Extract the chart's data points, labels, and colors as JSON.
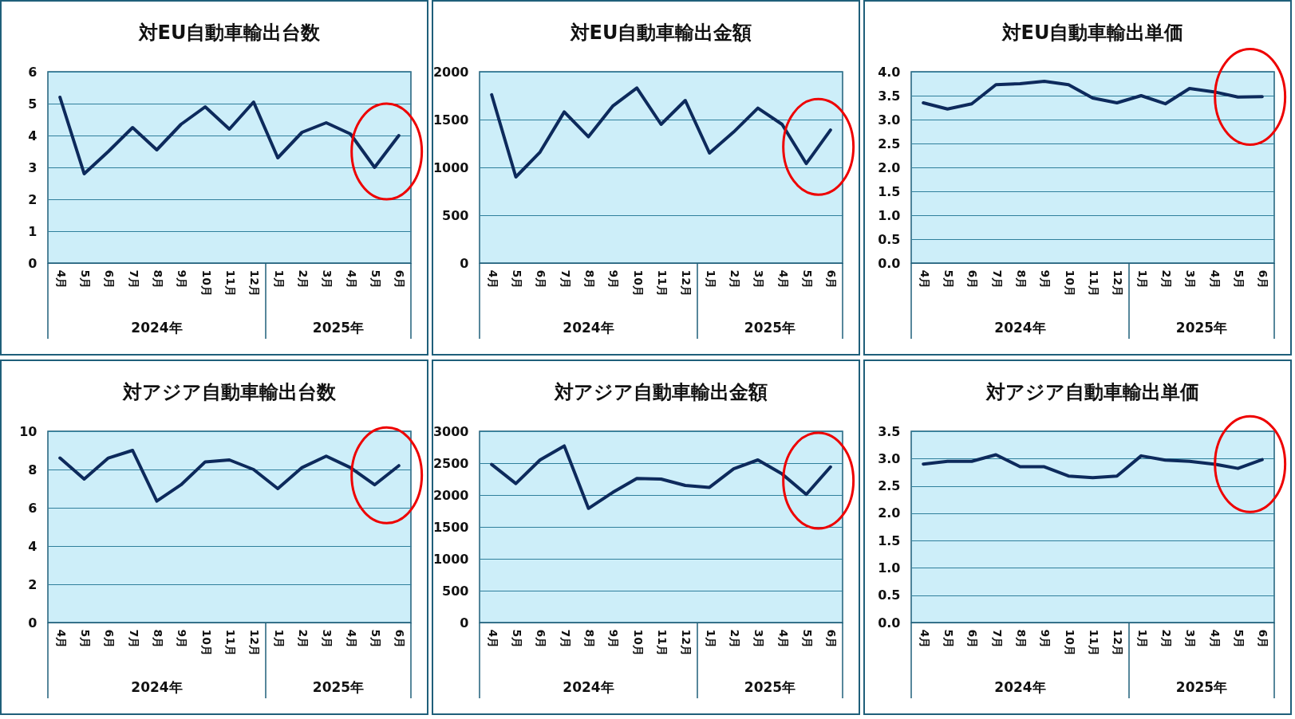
{
  "chart_data": [
    {
      "type": "line",
      "title": "対EU自動車輸出台数",
      "categories": [
        "4月",
        "5月",
        "6月",
        "7月",
        "8月",
        "9月",
        "10月",
        "11月",
        "12月",
        "1月",
        "2月",
        "3月",
        "4月",
        "5月",
        "6月"
      ],
      "annotations": [
        "2024年",
        "2025年"
      ],
      "series": [
        {
          "color": "#0d2a5c",
          "values": [
            5.2,
            2.8,
            3.5,
            4.25,
            3.55,
            4.35,
            4.9,
            4.2,
            5.05,
            3.3,
            4.1,
            4.4,
            4.05,
            3.0,
            4.0
          ]
        }
      ],
      "ylim": [
        0,
        6
      ],
      "yticks": [
        0,
        1,
        2,
        3,
        4,
        5,
        6
      ],
      "grid": "y"
    },
    {
      "type": "line",
      "title": "対EU自動車輸出金額",
      "categories": [
        "4月",
        "5月",
        "6月",
        "7月",
        "8月",
        "9月",
        "10月",
        "11月",
        "12月",
        "1月",
        "2月",
        "3月",
        "4月",
        "5月",
        "6月"
      ],
      "annotations": [
        "2024年",
        "2025年"
      ],
      "series": [
        {
          "color": "#0d2a5c",
          "values": [
            1760,
            900,
            1160,
            1580,
            1320,
            1640,
            1830,
            1450,
            1700,
            1150,
            1370,
            1620,
            1450,
            1040,
            1390
          ]
        }
      ],
      "ylim": [
        0,
        2000
      ],
      "yticks": [
        0,
        500,
        1000,
        1500,
        2000
      ],
      "grid": "y"
    },
    {
      "type": "line",
      "title": "対EU自動車輸出単価",
      "categories": [
        "4月",
        "5月",
        "6月",
        "7月",
        "8月",
        "9月",
        "10月",
        "11月",
        "12月",
        "1月",
        "2月",
        "3月",
        "4月",
        "5月",
        "6月"
      ],
      "annotations": [
        "2024年",
        "2025年"
      ],
      "series": [
        {
          "color": "#0d2a5c",
          "values": [
            3.35,
            3.22,
            3.33,
            3.73,
            3.75,
            3.8,
            3.73,
            3.45,
            3.35,
            3.5,
            3.33,
            3.65,
            3.58,
            3.47,
            3.48
          ]
        }
      ],
      "ylim": [
        0,
        4
      ],
      "yticks": [
        {
          "value": 0,
          "label": "0.0"
        },
        0.5,
        {
          "value": 1,
          "label": "1.0"
        },
        1.5,
        {
          "value": 2,
          "label": "2.0"
        },
        2.5,
        {
          "value": 3,
          "label": "3.0"
        },
        3.5,
        {
          "value": 4,
          "label": "4.0"
        }
      ],
      "grid": "y"
    },
    {
      "type": "line",
      "title": "対アジア自動車輸出台数",
      "categories": [
        "4月",
        "5月",
        "6月",
        "7月",
        "8月",
        "9月",
        "10月",
        "11月",
        "12月",
        "1月",
        "2月",
        "3月",
        "4月",
        "5月",
        "6月"
      ],
      "annotations": [
        "2024年",
        "2025年"
      ],
      "series": [
        {
          "color": "#0d2a5c",
          "values": [
            8.6,
            7.5,
            8.6,
            9.0,
            6.35,
            7.2,
            8.4,
            8.5,
            8.0,
            7.0,
            8.1,
            8.7,
            8.1,
            7.2,
            8.2
          ]
        }
      ],
      "ylim": [
        0,
        10
      ],
      "yticks": [
        0,
        2,
        4,
        6,
        8,
        10
      ],
      "grid": "y"
    },
    {
      "type": "line",
      "title": "対アジア自動車輸出金額",
      "categories": [
        "4月",
        "5月",
        "6月",
        "7月",
        "8月",
        "9月",
        "10月",
        "11月",
        "12月",
        "1月",
        "2月",
        "3月",
        "4月",
        "5月",
        "6月"
      ],
      "annotations": [
        "2024年",
        "2025年"
      ],
      "series": [
        {
          "color": "#0d2a5c",
          "values": [
            2480,
            2180,
            2550,
            2770,
            1790,
            2040,
            2260,
            2250,
            2150,
            2120,
            2410,
            2550,
            2330,
            2010,
            2440
          ]
        }
      ],
      "ylim": [
        0,
        3000
      ],
      "yticks": [
        0,
        500,
        1000,
        1500,
        2000,
        2500,
        3000
      ],
      "grid": "y"
    },
    {
      "type": "line",
      "title": "対アジア自動車輸出単価",
      "categories": [
        "4月",
        "5月",
        "6月",
        "7月",
        "8月",
        "9月",
        "10月",
        "11月",
        "12月",
        "1月",
        "2月",
        "3月",
        "4月",
        "5月",
        "6月"
      ],
      "annotations": [
        "2024年",
        "2025年"
      ],
      "series": [
        {
          "color": "#0d2a5c",
          "values": [
            2.9,
            2.95,
            2.95,
            3.07,
            2.85,
            2.85,
            2.68,
            2.65,
            2.68,
            3.05,
            2.97,
            2.95,
            2.9,
            2.82,
            2.98
          ]
        }
      ],
      "ylim": [
        0,
        3.5
      ],
      "yticks": [
        {
          "value": 0,
          "label": "0.0"
        },
        0.5,
        {
          "value": 1,
          "label": "1.0"
        },
        1.5,
        {
          "value": 2,
          "label": "2.0"
        },
        2.5,
        {
          "value": 3,
          "label": "3.0"
        },
        3.5
      ],
      "grid": "y"
    }
  ]
}
